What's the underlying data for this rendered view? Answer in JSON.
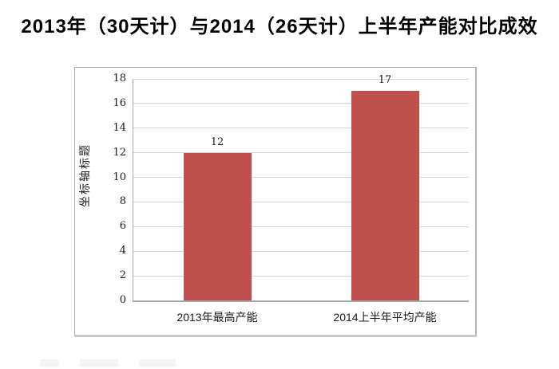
{
  "header": {
    "title": "2013年（30天计）与2014（26天计）上半年产能对比成效"
  },
  "chart_data": {
    "type": "bar",
    "title": "2013年（30天计）与2014（26天计）上半年产能对比成效",
    "categories": [
      "2013年最高产能",
      "2014上半年平均产能"
    ],
    "values": [
      12,
      17
    ],
    "data_labels": [
      "12",
      "17"
    ],
    "xlabel": "",
    "ylabel": "坐标轴标题",
    "ylim": [
      0,
      18
    ],
    "ytick_step": 2,
    "ytick_labels": [
      "0",
      "2",
      "4",
      "6",
      "8",
      "10",
      "12",
      "14",
      "16",
      "18"
    ],
    "grid": true,
    "legend": false,
    "bar_color": "#C0504D",
    "gridline_color": "#D6D6D6",
    "axis_color": "#A6A6A6"
  }
}
